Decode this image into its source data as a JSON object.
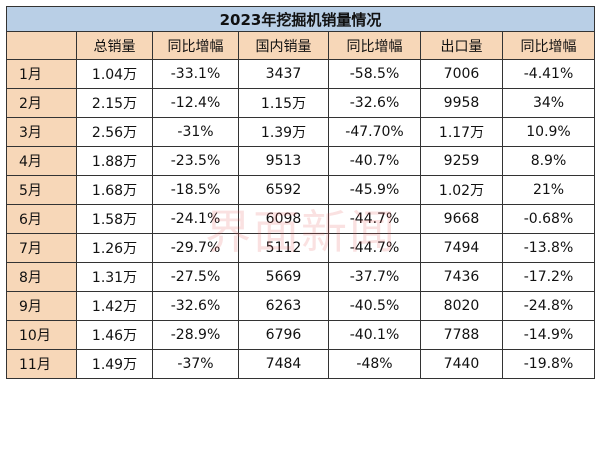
{
  "title": "2023年挖掘机销量情况",
  "headers": [
    "",
    "总销量",
    "同比增幅",
    "国内销量",
    "同比增幅",
    "出口量",
    "同比增幅"
  ],
  "rows": [
    [
      "1月",
      "1.04万",
      "-33.1%",
      "3437",
      "-58.5%",
      "7006",
      "-4.41%"
    ],
    [
      "2月",
      "2.15万",
      "-12.4%",
      "1.15万",
      "-32.6%",
      "9958",
      "34%"
    ],
    [
      "3月",
      "2.56万",
      "-31%",
      "1.39万",
      "-47.70%",
      "1.17万",
      "10.9%"
    ],
    [
      "4月",
      "1.88万",
      "-23.5%",
      "9513",
      "-40.7%",
      "9259",
      "8.9%"
    ],
    [
      "5月",
      "1.68万",
      "-18.5%",
      "6592",
      "-45.9%",
      "1.02万",
      "21%"
    ],
    [
      "6月",
      "1.58万",
      "-24.1%",
      "6098",
      "-44.7%",
      "9668",
      "-0.68%"
    ],
    [
      "7月",
      "1.26万",
      "-29.7%",
      "5112",
      "-44.7%",
      "7494",
      "-13.8%"
    ],
    [
      "8月",
      "1.31万",
      "-27.5%",
      "5669",
      "-37.7%",
      "7436",
      "-17.2%"
    ],
    [
      "9月",
      "1.42万",
      "-32.6%",
      "6263",
      "-40.5%",
      "8020",
      "-24.8%"
    ],
    [
      "10月",
      "1.46万",
      "-28.9%",
      "6796",
      "-40.1%",
      "7788",
      "-14.9%"
    ],
    [
      "11月",
      "1.49万",
      "-37%",
      "7484",
      "-48%",
      "7440",
      "-19.8%"
    ]
  ],
  "watermark": "界面新闻",
  "colors": {
    "title_bg": "#b9cfe6",
    "header_bg": "#f7d7b8",
    "border": "#333333"
  }
}
